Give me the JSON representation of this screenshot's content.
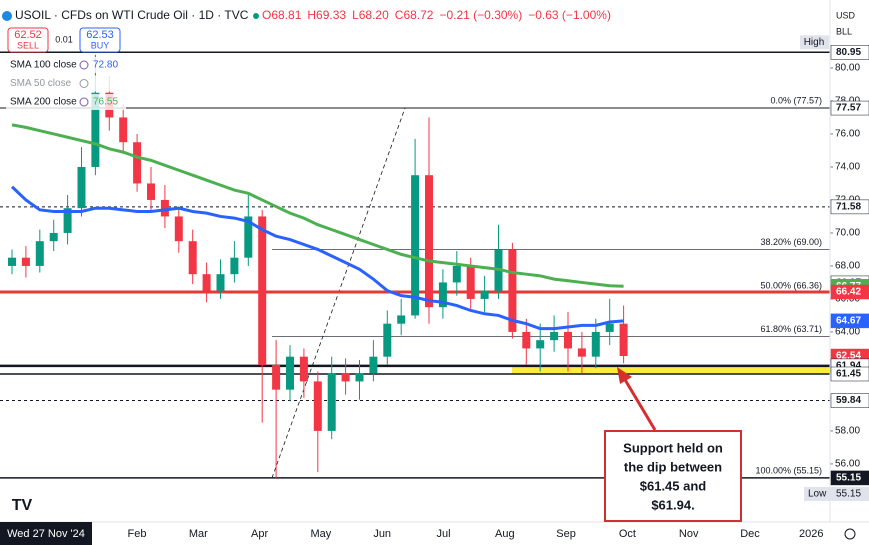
{
  "chart_data": {
    "type": "candlestick",
    "title": "USOIL · CFDs on WTI Crude Oil · 1D · TVC",
    "quote": [
      "O68.81",
      "H69.33",
      "L68.20",
      "C68.72",
      "−0.21 (−0.30%)",
      "−0.63 (−1.00%)"
    ],
    "sell": {
      "price": "62.52",
      "label": "SELL"
    },
    "spread": "0.01",
    "buy": {
      "price": "62.53",
      "label": "BUY"
    },
    "currency": "USD",
    "unit": "BLL",
    "ylim": [
      52.6,
      84.12
    ],
    "yticks": [
      {
        "value": 56,
        "label": "56.00"
      },
      {
        "value": 58,
        "label": "58.00"
      },
      {
        "value": 60,
        "label": "60.00"
      },
      {
        "value": 62,
        "label": "62.00"
      },
      {
        "value": 64,
        "label": "64.00"
      },
      {
        "value": 66,
        "label": "66.00"
      },
      {
        "value": 68,
        "label": "68.00"
      },
      {
        "value": 70,
        "label": "70.00"
      },
      {
        "value": 72,
        "label": "72.00"
      },
      {
        "value": 74,
        "label": "74.00"
      },
      {
        "value": 76,
        "label": "76.00"
      },
      {
        "value": 78,
        "label": "78.00"
      },
      {
        "value": 80,
        "label": "80.00"
      }
    ],
    "cursor_date": "Wed 27 Nov '24",
    "months": [
      "Feb",
      "Mar",
      "Apr",
      "May",
      "Jun",
      "Jul",
      "Aug",
      "Sep",
      "Oct",
      "Nov",
      "Dec",
      "2026"
    ],
    "up_color": "#089981",
    "down_color": "#f23645",
    "open": [
      68.0,
      68.5,
      68.0,
      69.5,
      70.0,
      71.5,
      74.0,
      78.5,
      77.0,
      75.5,
      73.0,
      72.0,
      71.0,
      69.5,
      67.5,
      66.5,
      67.5,
      68.5,
      71.0,
      62.0,
      60.5,
      62.5,
      61.0,
      58.0,
      61.5,
      61.0,
      61.5,
      62.5,
      64.5,
      65.0,
      73.5,
      65.5,
      67.0,
      68.0,
      66.0,
      66.5,
      69.0,
      64.0,
      63.0,
      63.5,
      64.0,
      63.0,
      62.5,
      64.0,
      64.5
    ],
    "high": [
      69.0,
      69.2,
      70.2,
      70.8,
      72.3,
      75.2,
      80.8,
      79.5,
      77.8,
      76.0,
      74.0,
      72.9,
      71.6,
      70.2,
      68.2,
      68.4,
      69.5,
      72.3,
      71.4,
      63.5,
      63.2,
      63.0,
      61.6,
      62.5,
      62.4,
      62.3,
      63.5,
      65.3,
      66.0,
      75.7,
      77.0,
      67.8,
      68.9,
      68.5,
      67.4,
      70.5,
      69.4,
      64.8,
      64.5,
      65.0,
      65.2,
      64.0,
      64.8,
      66.0,
      65.6
    ],
    "low": [
      67.5,
      67.3,
      67.6,
      68.9,
      69.3,
      71.0,
      73.5,
      76.2,
      74.8,
      72.5,
      71.3,
      70.3,
      68.8,
      66.9,
      65.8,
      66.0,
      67.0,
      68.0,
      58.5,
      55.15,
      59.8,
      60.0,
      55.5,
      57.5,
      60.2,
      59.9,
      61.0,
      62.0,
      63.8,
      64.8,
      64.5,
      64.8,
      66.2,
      65.4,
      65.2,
      66.0,
      63.6,
      62.0,
      61.6,
      62.8,
      61.6,
      61.5,
      61.8,
      63.2,
      62.1
    ],
    "close": [
      68.5,
      68.0,
      69.5,
      70.0,
      71.5,
      74.0,
      78.5,
      77.0,
      75.5,
      73.0,
      72.0,
      71.0,
      69.5,
      67.5,
      66.5,
      67.5,
      68.5,
      71.0,
      62.0,
      60.5,
      62.5,
      61.0,
      58.0,
      61.5,
      61.0,
      61.5,
      62.5,
      64.5,
      65.0,
      73.5,
      65.5,
      67.0,
      68.0,
      66.0,
      66.5,
      69.0,
      64.0,
      63.0,
      63.5,
      64.0,
      63.0,
      62.5,
      64.0,
      64.5,
      62.54
    ],
    "series": [
      {
        "name": "SMA 100 close",
        "color": "#2962ff",
        "legend_value": "72.80",
        "values": [
          72.8,
          72.0,
          71.4,
          71.3,
          71.3,
          71.3,
          71.5,
          71.5,
          71.4,
          71.3,
          71.3,
          71.4,
          71.5,
          71.3,
          71.2,
          71.0,
          70.9,
          70.7,
          70.2,
          69.8,
          69.6,
          69.3,
          69.0,
          68.6,
          68.2,
          67.8,
          67.2,
          66.5,
          66.2,
          66.1,
          65.9,
          65.8,
          65.6,
          65.3,
          65.1,
          65.0,
          64.7,
          64.5,
          64.2,
          64.2,
          64.3,
          64.4,
          64.4,
          64.6,
          64.67
        ]
      },
      {
        "name": "SMA 50 close",
        "color": "#9598a1",
        "hidden": true
      },
      {
        "name": "SMA 200 close",
        "color": "#4caf50",
        "legend_value": "76.55",
        "values": [
          76.55,
          76.4,
          76.2,
          76.0,
          75.8,
          75.6,
          75.4,
          75.1,
          74.9,
          74.6,
          74.4,
          74.1,
          73.8,
          73.5,
          73.2,
          72.9,
          72.6,
          72.4,
          72.0,
          71.6,
          71.2,
          70.9,
          70.5,
          70.2,
          69.9,
          69.6,
          69.3,
          69.0,
          68.7,
          68.5,
          68.3,
          68.2,
          68.1,
          68.0,
          67.9,
          67.8,
          67.6,
          67.5,
          67.4,
          67.2,
          67.1,
          67.0,
          66.9,
          66.8,
          66.77
        ]
      }
    ],
    "lines": [
      {
        "value": 80.95,
        "color": "#131722",
        "width": 1.5
      },
      {
        "value": 77.57,
        "color": "#131722",
        "width": 1
      },
      {
        "value": 71.58,
        "color": "#131722",
        "width": 1,
        "dashed": true
      },
      {
        "value": 66.42,
        "color": "#e53935",
        "width": 3
      },
      {
        "value": 61.94,
        "color": "#131722",
        "width": 2.5
      },
      {
        "value": 61.45,
        "color": "#131722",
        "width": 1.5
      },
      {
        "value": 59.84,
        "color": "#131722",
        "width": 1,
        "dashed": true
      },
      {
        "value": 55.15,
        "color": "#131722",
        "width": 1.5
      }
    ],
    "support_zone": {
      "low": 61.45,
      "high": 61.94,
      "color": "#ffeb3b"
    },
    "fib": [
      {
        "value": 77.57,
        "label": "0.0% (77.57)"
      },
      {
        "value": 69.0,
        "label": "38.20% (69.00)"
      },
      {
        "value": 66.36,
        "label": "50.00% (66.36)"
      },
      {
        "value": 63.71,
        "label": "61.80% (63.71)"
      },
      {
        "value": 55.15,
        "label": "100.00% (55.15)"
      }
    ],
    "tags": [
      {
        "value": 80.95,
        "color": "#ffffff",
        "text_color": "#131722",
        "caption": "High"
      },
      {
        "value": 77.57,
        "color": "#ffffff",
        "text_color": "#131722"
      },
      {
        "value": 71.58,
        "color": "#ffffff",
        "text_color": "#131722"
      },
      {
        "value": 66.97,
        "color": "#ffffff",
        "text_color": "#131722"
      },
      {
        "value": 66.77,
        "color": "#4caf50",
        "text_color": "#ffffff"
      },
      {
        "value": 66.42,
        "color": "#f23645",
        "text_color": "#ffffff"
      },
      {
        "value": 64.67,
        "color": "#2962ff",
        "text_color": "#ffffff"
      },
      {
        "value": 62.54,
        "color": "#f23645",
        "text_color": "#ffffff"
      },
      {
        "value": 61.94,
        "color": "#ffffff",
        "text_color": "#131722"
      },
      {
        "value": 61.45,
        "color": "#ffffff",
        "text_color": "#131722"
      },
      {
        "value": 59.84,
        "color": "#ffffff",
        "text_color": "#131722"
      },
      {
        "value": 55.15,
        "color": "#131722",
        "text_color": "#ffffff"
      }
    ],
    "low_tag": {
      "caption": "Low",
      "value": 55.15
    },
    "annotation": [
      "Support held on",
      "the dip between",
      "$61.45 and",
      "$61.94."
    ]
  }
}
